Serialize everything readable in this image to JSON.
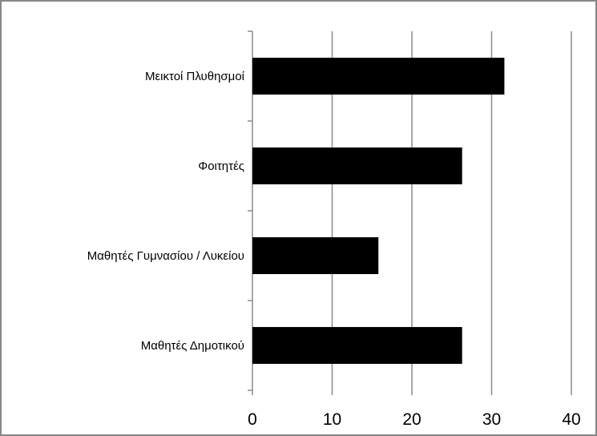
{
  "chart_data": {
    "type": "bar",
    "orientation": "horizontal",
    "categories": [
      "Μεικτοί Πλυθησμοί",
      "Φοιτητές",
      "Μαθητές Γυμνασίου / Λυκείου",
      "Μαθητές Δημοτικού"
    ],
    "values": [
      31.6,
      26.3,
      15.8,
      26.3
    ],
    "title": "",
    "xlabel": "",
    "ylabel": "",
    "xlim": [
      0,
      40
    ],
    "xticks": [
      "0",
      "10",
      "20",
      "30",
      "40"
    ],
    "grid": "vertical",
    "legend": "none",
    "bar_color": "#000000",
    "grid_color": "#8c8c8c",
    "border_color": "#878787"
  }
}
